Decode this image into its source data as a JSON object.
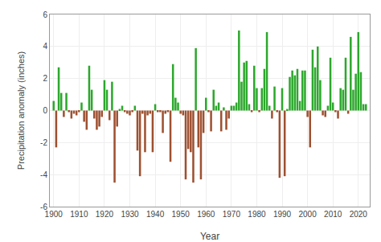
{
  "chart_data": {
    "type": "bar",
    "x": [
      1900,
      1901,
      1902,
      1903,
      1904,
      1905,
      1906,
      1907,
      1908,
      1909,
      1910,
      1911,
      1912,
      1913,
      1914,
      1915,
      1916,
      1917,
      1918,
      1919,
      1920,
      1921,
      1922,
      1923,
      1924,
      1925,
      1926,
      1927,
      1928,
      1929,
      1930,
      1931,
      1932,
      1933,
      1934,
      1935,
      1936,
      1937,
      1938,
      1939,
      1940,
      1941,
      1942,
      1943,
      1944,
      1945,
      1946,
      1947,
      1948,
      1949,
      1950,
      1951,
      1952,
      1953,
      1954,
      1955,
      1956,
      1957,
      1958,
      1959,
      1960,
      1961,
      1962,
      1963,
      1964,
      1965,
      1966,
      1967,
      1968,
      1969,
      1970,
      1971,
      1972,
      1973,
      1974,
      1975,
      1976,
      1977,
      1978,
      1979,
      1980,
      1981,
      1982,
      1983,
      1984,
      1985,
      1986,
      1987,
      1988,
      1989,
      1990,
      1991,
      1992,
      1993,
      1994,
      1995,
      1996,
      1997,
      1998,
      1999,
      2000,
      2001,
      2002,
      2003,
      2004,
      2005,
      2006,
      2007,
      2008,
      2009,
      2010,
      2011,
      2012,
      2013,
      2014,
      2015,
      2016,
      2017,
      2018,
      2019,
      2020,
      2021,
      2022,
      2023
    ],
    "values": [
      0.6,
      -2.3,
      2.7,
      1.1,
      -0.4,
      1.1,
      -0.1,
      -0.5,
      -0.2,
      -0.3,
      -0.1,
      0.5,
      -0.7,
      -1.2,
      2.8,
      1.3,
      -0.5,
      -1.2,
      -1.0,
      -0.4,
      1.9,
      1.3,
      -0.6,
      1.8,
      -4.5,
      -1.0,
      0.1,
      0.3,
      -0.1,
      -0.2,
      -0.3,
      -0.1,
      0.3,
      -2.5,
      -4.1,
      -0.2,
      -2.6,
      -0.3,
      -0.2,
      -2.6,
      0.4,
      -0.1,
      -0.1,
      -1.4,
      -0.2,
      -0.1,
      -3.2,
      2.9,
      0.8,
      0.5,
      -0.2,
      -0.3,
      -4.3,
      -2.4,
      -2.6,
      -4.5,
      3.9,
      -2.3,
      -4.3,
      -1.4,
      0.8,
      -0.1,
      -1.3,
      1.3,
      0.3,
      0.5,
      -1.3,
      0.2,
      -1.2,
      -0.5,
      0.3,
      0.3,
      0.5,
      5.0,
      1.8,
      3.0,
      3.1,
      0.4,
      -0.1,
      2.8,
      1.4,
      -0.1,
      1.4,
      2.6,
      4.9,
      0.3,
      -0.5,
      1.5,
      -0.1,
      -4.2,
      1.4,
      -4.1,
      0.1,
      2.1,
      2.5,
      2.2,
      2.6,
      0.6,
      2.5,
      2.5,
      -0.4,
      -2.3,
      3.8,
      2.7,
      4.0,
      1.9,
      -0.3,
      -0.4,
      0.3,
      3.3,
      0.5,
      -0.1,
      -0.5,
      1.4,
      1.3,
      3.3,
      -0.2,
      4.6,
      1.3,
      2.3,
      4.9,
      2.4,
      0.4,
      0.4
    ],
    "colors": [
      "#2ca82c",
      "#9e5030",
      "#2ca82c",
      "#2ca82c",
      "#9e5030",
      "#2ca82c",
      "#9e5030",
      "#9e5030",
      "#9e5030",
      "#9e5030",
      "#9e5030",
      "#2ca82c",
      "#9e5030",
      "#9e5030",
      "#2ca82c",
      "#2ca82c",
      "#9e5030",
      "#9e5030",
      "#9e5030",
      "#9e5030",
      "#2ca82c",
      "#2ca82c",
      "#9e5030",
      "#2ca82c",
      "#9e5030",
      "#9e5030",
      "#2ca82c",
      "#2ca82c",
      "#9e5030",
      "#9e5030",
      "#9e5030",
      "#9e5030",
      "#2ca82c",
      "#9e5030",
      "#9e5030",
      "#9e5030",
      "#9e5030",
      "#9e5030",
      "#9e5030",
      "#9e5030",
      "#2ca82c",
      "#9e5030",
      "#9e5030",
      "#9e5030",
      "#9e5030",
      "#9e5030",
      "#9e5030",
      "#2ca82c",
      "#2ca82c",
      "#2ca82c",
      "#9e5030",
      "#9e5030",
      "#9e5030",
      "#9e5030",
      "#9e5030",
      "#9e5030",
      "#2ca82c",
      "#9e5030",
      "#9e5030",
      "#9e5030",
      "#2ca82c",
      "#9e5030",
      "#9e5030",
      "#2ca82c",
      "#2ca82c",
      "#2ca82c",
      "#9e5030",
      "#2ca82c",
      "#9e5030",
      "#9e5030",
      "#2ca82c",
      "#2ca82c",
      "#2ca82c",
      "#2ca82c",
      "#2ca82c",
      "#2ca82c",
      "#2ca82c",
      "#2ca82c",
      "#9e5030",
      "#2ca82c",
      "#2ca82c",
      "#9e5030",
      "#2ca82c",
      "#2ca82c",
      "#2ca82c",
      "#2ca82c",
      "#9e5030",
      "#2ca82c",
      "#9e5030",
      "#9e5030",
      "#2ca82c",
      "#9e5030",
      "#2ca82c",
      "#2ca82c",
      "#2ca82c",
      "#2ca82c",
      "#2ca82c",
      "#2ca82c",
      "#2ca82c",
      "#2ca82c",
      "#9e5030",
      "#9e5030",
      "#2ca82c",
      "#2ca82c",
      "#2ca82c",
      "#2ca82c",
      "#9e5030",
      "#9e5030",
      "#2ca82c",
      "#2ca82c",
      "#2ca82c",
      "#9e5030",
      "#9e5030",
      "#2ca82c",
      "#2ca82c",
      "#2ca82c",
      "#9e5030",
      "#2ca82c",
      "#2ca82c",
      "#2ca82c",
      "#2ca82c",
      "#2ca82c",
      "#2ca82c",
      "#2ca82c"
    ],
    "xlabel": "Year",
    "ylabel": "Precipitation anomaly (inches)",
    "xlim": [
      1898.5,
      2024.5
    ],
    "xticks": [
      1900,
      1910,
      1920,
      1930,
      1940,
      1950,
      1960,
      1970,
      1980,
      1990,
      2000,
      2010,
      2020
    ],
    "ylim": [
      -6,
      6
    ],
    "yticks": [
      -6,
      -4,
      -2,
      0,
      2,
      4,
      6
    ],
    "grid": true
  }
}
